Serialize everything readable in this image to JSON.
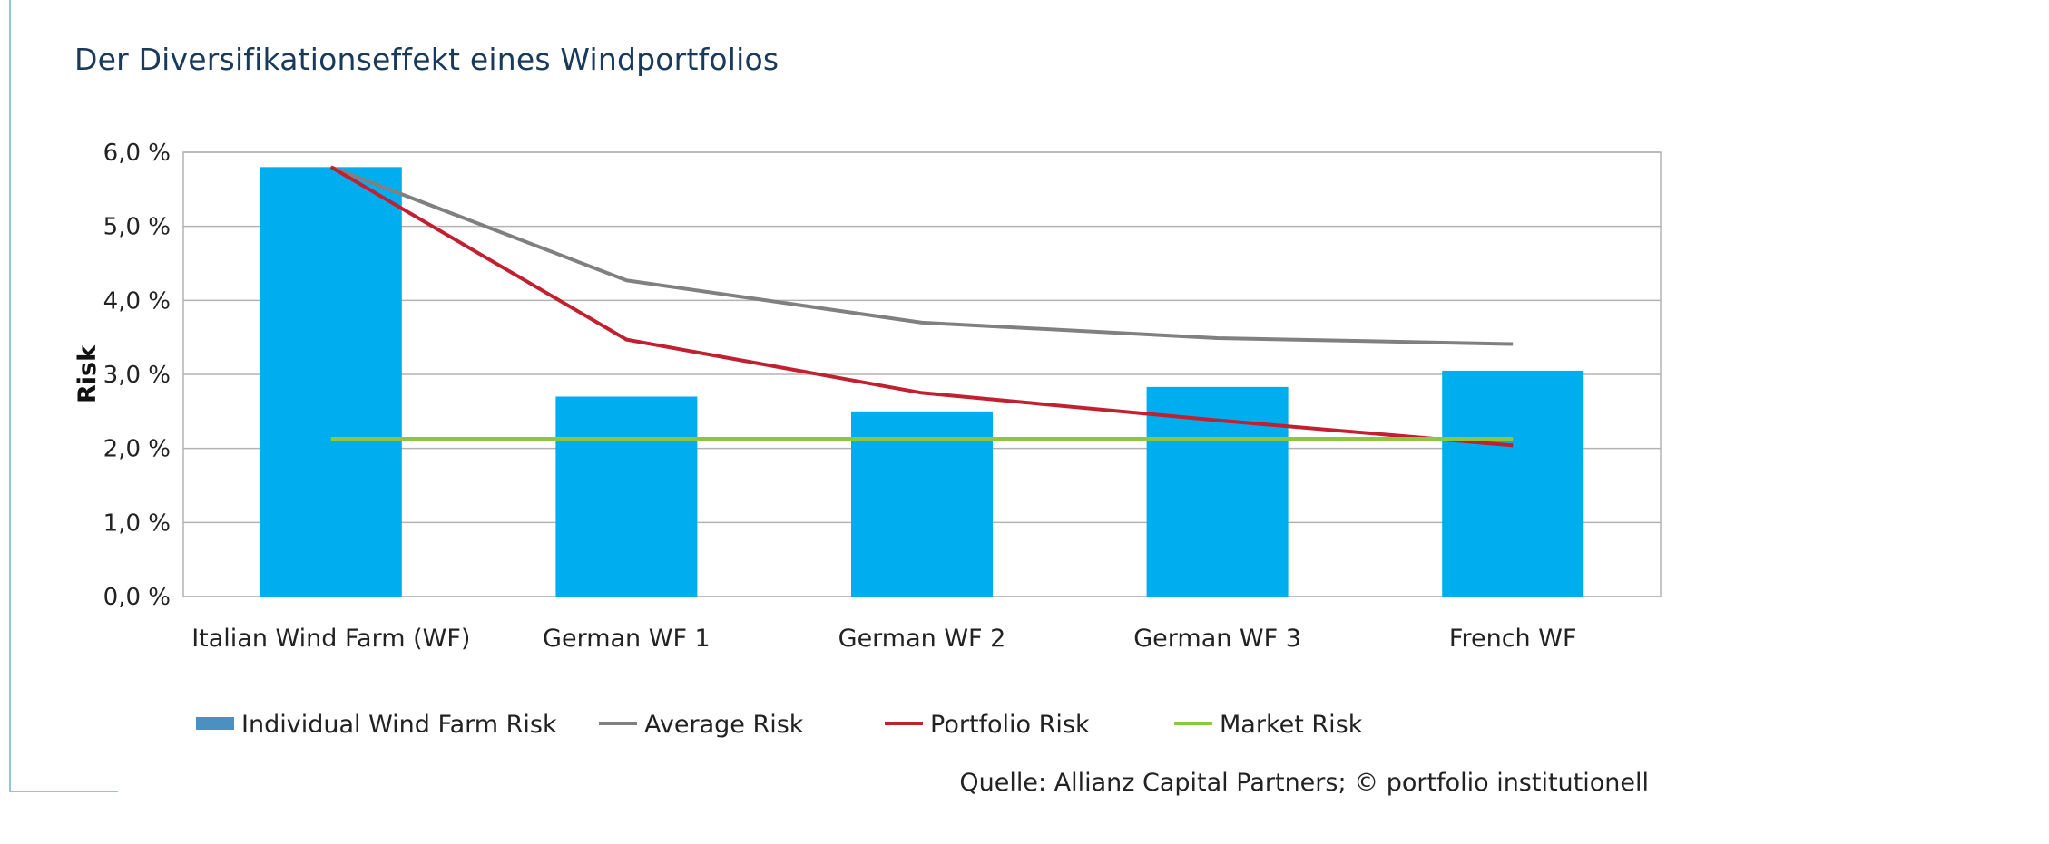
{
  "title": "Der Diversifikationseffekt eines Windportfolios",
  "source": "Quelle: Allianz Capital Partners; © portfolio institutionell",
  "colors": {
    "bar": "#00aeef",
    "legend_bar": "#4a90c2",
    "average": "#808080",
    "portfolio": "#c0202f",
    "market": "#8dc63f",
    "grid": "#b3b3b3",
    "frame": "#8cc9d3",
    "title": "#1a3a5c"
  },
  "chart_data": {
    "type": "bar",
    "categories": [
      "Italian Wind Farm (WF)",
      "German WF 1",
      "German WF 2",
      "German WF 3",
      "French WF"
    ],
    "ylabel": "Risk",
    "xlabel": "",
    "ylim": [
      0,
      6
    ],
    "yticks": [
      0,
      1,
      2,
      3,
      4,
      5,
      6
    ],
    "ytick_labels": [
      "0,0 %",
      "1,0 %",
      "2,0 %",
      "3,0 %",
      "4,0 %",
      "5,0 %",
      "6,0 %"
    ],
    "grid": true,
    "legend_position": "bottom",
    "series": [
      {
        "name": "Individual Wind Farm Risk",
        "kind": "bar",
        "values": [
          5.8,
          2.7,
          2.5,
          2.83,
          3.05
        ]
      },
      {
        "name": "Average Risk",
        "kind": "line",
        "values": [
          5.8,
          4.27,
          3.7,
          3.49,
          3.41
        ]
      },
      {
        "name": "Portfolio Risk",
        "kind": "line",
        "values": [
          5.8,
          3.47,
          2.75,
          2.38,
          2.04
        ]
      },
      {
        "name": "Market Risk",
        "kind": "line",
        "values": [
          2.13,
          2.13,
          2.13,
          2.13,
          2.13
        ]
      }
    ]
  }
}
